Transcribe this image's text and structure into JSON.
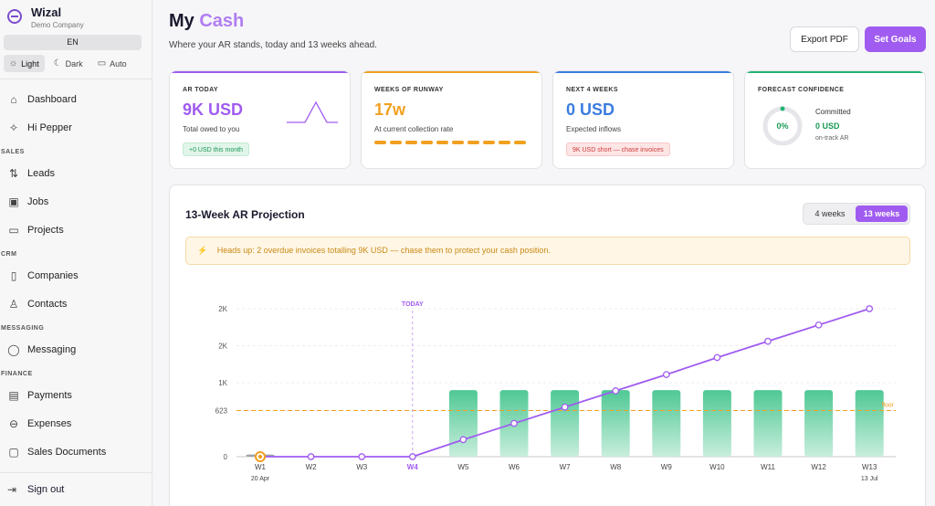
{
  "sidebar": {
    "brand_name": "Wizal",
    "brand_sub": "Demo Company",
    "lang": "EN",
    "themes": [
      {
        "label": "Light",
        "icon": "sun-icon",
        "glyph": "☼"
      },
      {
        "label": "Dark",
        "icon": "moon-icon",
        "glyph": "☾"
      },
      {
        "label": "Auto",
        "icon": "monitor-icon",
        "glyph": "▭"
      }
    ],
    "items": [
      {
        "label": "Dashboard",
        "icon": "home-icon",
        "glyph": "⌂"
      },
      {
        "label": "Hi Pepper",
        "icon": "sparkle-icon",
        "glyph": "✧"
      }
    ],
    "sections": [
      {
        "title": "SALES",
        "items": [
          {
            "label": "Leads",
            "icon": "filter-icon",
            "glyph": "⇅"
          },
          {
            "label": "Jobs",
            "icon": "briefcase-icon",
            "glyph": "▣"
          },
          {
            "label": "Projects",
            "icon": "folder-icon",
            "glyph": "▭"
          }
        ]
      },
      {
        "title": "CRM",
        "items": [
          {
            "label": "Companies",
            "icon": "building-icon",
            "glyph": "▯"
          },
          {
            "label": "Contacts",
            "icon": "user-icon",
            "glyph": "♙"
          }
        ]
      },
      {
        "title": "MESSAGING",
        "items": [
          {
            "label": "Messaging",
            "icon": "chat-icon",
            "glyph": "◯"
          }
        ]
      },
      {
        "title": "FINANCE",
        "items": [
          {
            "label": "Payments",
            "icon": "wallet-icon",
            "glyph": "▤"
          },
          {
            "label": "Expenses",
            "icon": "minus-circle-icon",
            "glyph": "⊖"
          },
          {
            "label": "Sales Documents",
            "icon": "document-icon",
            "glyph": "▢"
          }
        ]
      }
    ],
    "signout": "Sign out"
  },
  "header": {
    "title_main": "My",
    "title_accent": "Cash",
    "subtitle": "Where your AR stands, today and 13 weeks ahead.",
    "export_label": "Export PDF",
    "goals_label": "Set Goals"
  },
  "kpis": {
    "ar_today": {
      "label": "AR TODAY",
      "value": "9K USD",
      "desc": "Total owed to you",
      "pill": "+0 USD this month",
      "color": "#a05cf0"
    },
    "runway": {
      "label": "WEEKS OF RUNWAY",
      "value": "17w",
      "desc": "At current collection rate",
      "color": "#f0a020",
      "segments": 10
    },
    "next4": {
      "label": "NEXT 4 WEEKS",
      "value": "0 USD",
      "desc": "Expected inflows",
      "pill": "9K USD short — chase invoices",
      "color": "#3b7de0"
    },
    "confidence": {
      "label": "FORECAST CONFIDENCE",
      "gauge_value": "0%",
      "committed_label": "Committed",
      "committed_value": "0 USD",
      "committed_desc": "on-track AR",
      "color": "#22b573"
    }
  },
  "projection": {
    "title": "13-Week AR Projection",
    "toggle_4": "4 weeks",
    "toggle_13": "13 weeks",
    "alert": "Heads up: 2 overdue invoices totalling 9K USD — chase them to protect your cash position.",
    "alert_icon": "lightning-icon"
  },
  "chart_data": {
    "type": "bar",
    "categories": [
      "W1",
      "W2",
      "W3",
      "W4",
      "W5",
      "W6",
      "W7",
      "W8",
      "W9",
      "W10",
      "W11",
      "W12",
      "W13"
    ],
    "first_date": "20 Apr",
    "last_date": "13 Jul",
    "today_label": "TODAY",
    "today_index": 3,
    "floor_label": "floor",
    "floor_value": 623,
    "y_ticks": [
      0,
      623,
      1000,
      1500,
      2000
    ],
    "y_tick_labels": [
      "0",
      "623",
      "1K",
      "2K",
      "2K"
    ],
    "ylim": [
      0,
      2000
    ],
    "series": [
      {
        "values": [
          30,
          0,
          0,
          0,
          900,
          900,
          900,
          900,
          900,
          900,
          900,
          900,
          900
        ],
        "color": "#4fc895"
      },
      {
        "values": [
          0,
          0,
          0,
          0,
          230,
          450,
          670,
          890,
          1110,
          1340,
          1560,
          1780,
          2000
        ],
        "color": "#a05cf0"
      }
    ]
  }
}
